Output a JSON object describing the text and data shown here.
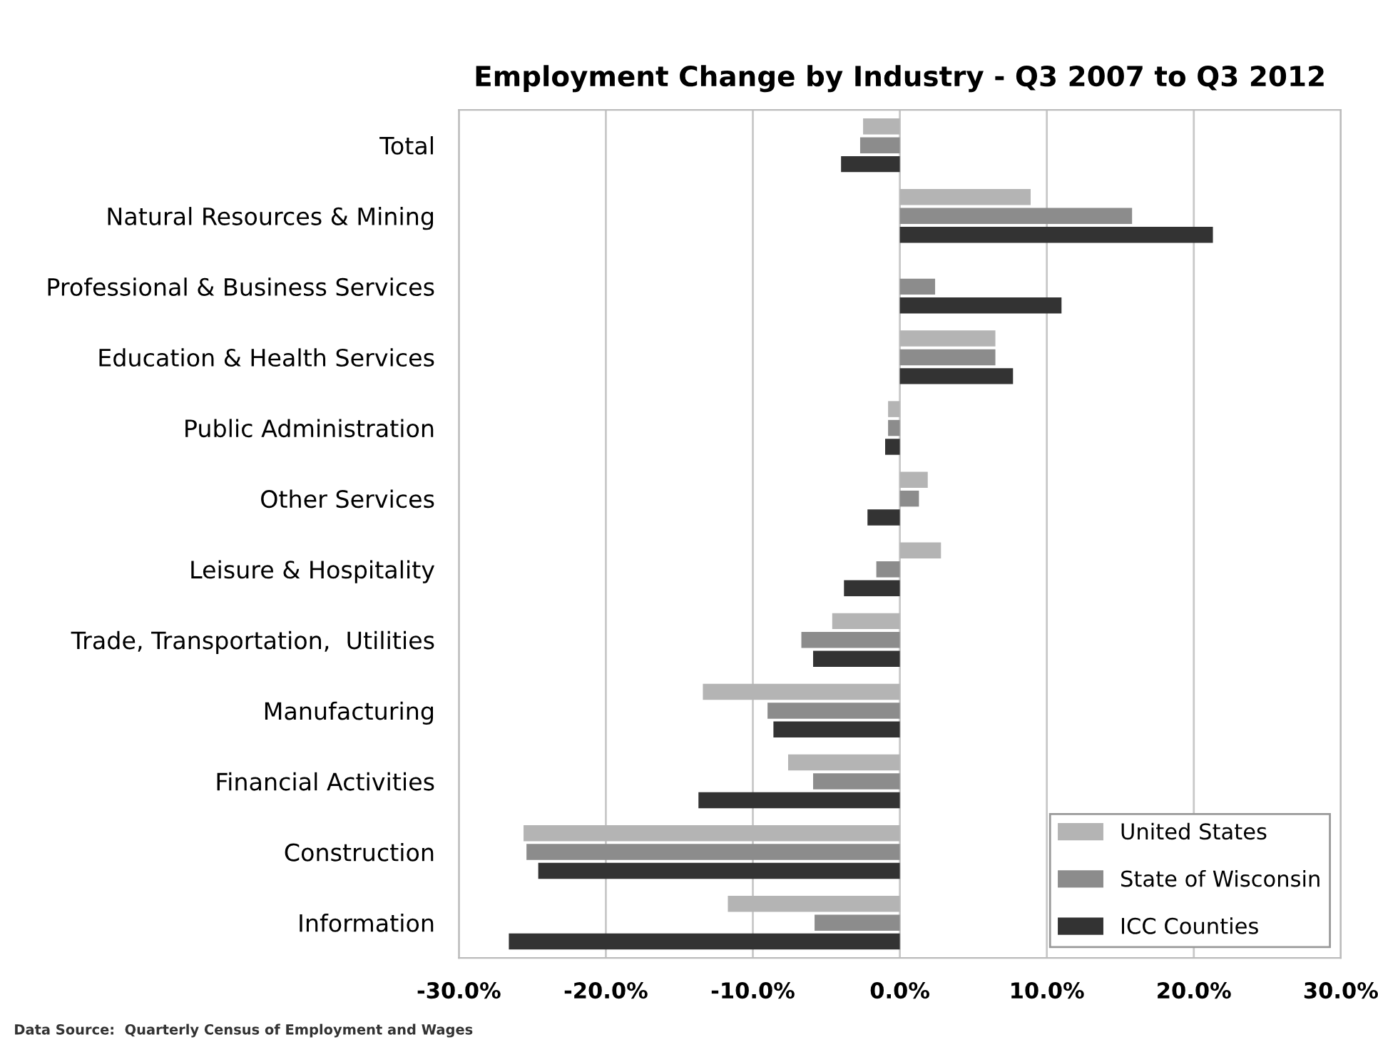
{
  "chart_data": {
    "type": "bar",
    "orientation": "horizontal",
    "title": "Employment Change by Industry - Q3 2007 to Q3 2012",
    "categories": [
      "Total",
      "Natural Resources & Mining",
      "Professional & Business Services",
      "Education & Health Services",
      "Public Administration",
      "Other Services",
      "Leisure & Hospitality",
      "Trade, Transportation,  Utilities",
      "Manufacturing",
      "Financial Activities",
      "Construction",
      "Information"
    ],
    "series": [
      {
        "name": "United States",
        "color": "#b4b4b4",
        "values": [
          -2.5,
          8.9,
          null,
          6.5,
          -0.8,
          1.9,
          2.8,
          -4.6,
          -13.4,
          -7.6,
          -25.6,
          -11.7
        ]
      },
      {
        "name": "State of Wisconsin",
        "color": "#8c8c8c",
        "values": [
          -2.7,
          15.8,
          2.4,
          6.5,
          -0.8,
          1.3,
          -1.6,
          -6.7,
          -9.0,
          -5.9,
          -25.4,
          -5.8
        ]
      },
      {
        "name": "ICC Counties",
        "color": "#333333",
        "values": [
          -4.0,
          21.3,
          11.0,
          7.7,
          -1.0,
          -2.2,
          -3.8,
          -5.9,
          -8.6,
          -13.7,
          -24.6,
          -26.6
        ]
      }
    ],
    "xlim": [
      -30,
      30
    ],
    "xticks": [
      {
        "value": -30,
        "label": "-30.0%"
      },
      {
        "value": -20,
        "label": "-20.0%"
      },
      {
        "value": -10,
        "label": "-10.0%"
      },
      {
        "value": 0,
        "label": "0.0%"
      },
      {
        "value": 10,
        "label": "10.0%"
      },
      {
        "value": 20,
        "label": "20.0%"
      },
      {
        "value": 30,
        "label": "30.0%"
      }
    ],
    "grid": "x",
    "legend": "bottom right",
    "annotations": [
      "Data Source:  Quarterly Census of Employment and Wages"
    ]
  }
}
